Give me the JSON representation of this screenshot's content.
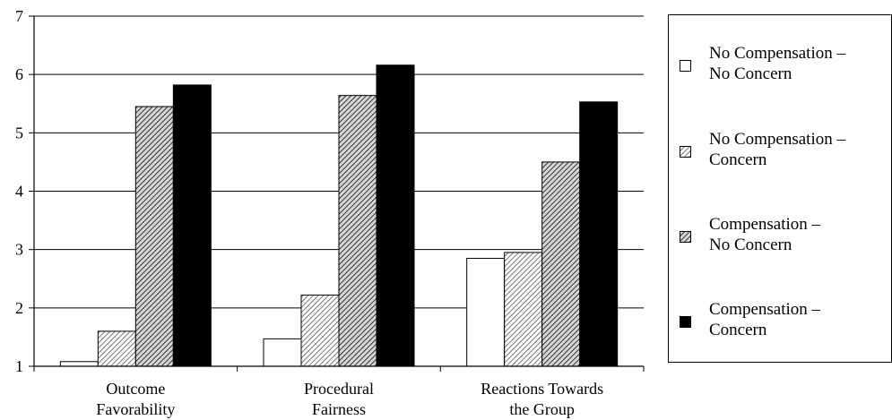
{
  "chart_data": {
    "type": "bar",
    "categories": [
      "Outcome\nFavorability",
      "Procedural\nFairness",
      "Reactions Towards\nthe Group"
    ],
    "series": [
      {
        "name": "No Compensation –\nNo Concern",
        "values": [
          1.08,
          1.47,
          2.85
        ],
        "pattern": "white"
      },
      {
        "name": "No Compensation –\nConcern",
        "values": [
          1.6,
          2.22,
          2.95
        ],
        "pattern": "light-hatch"
      },
      {
        "name": "Compensation –\nNo Concern",
        "values": [
          5.45,
          5.64,
          4.5
        ],
        "pattern": "gray-hatch"
      },
      {
        "name": "Compensation –\nConcern",
        "values": [
          5.82,
          6.16,
          5.53
        ],
        "pattern": "black"
      }
    ],
    "ylim": [
      1,
      7
    ],
    "yticks": [
      1,
      2,
      3,
      4,
      5,
      6,
      7
    ],
    "grid": true,
    "legend_position": "right",
    "colors": {
      "bar_stroke": "#000000",
      "fill_black": "#000000",
      "fill_white": "#ffffff"
    }
  }
}
